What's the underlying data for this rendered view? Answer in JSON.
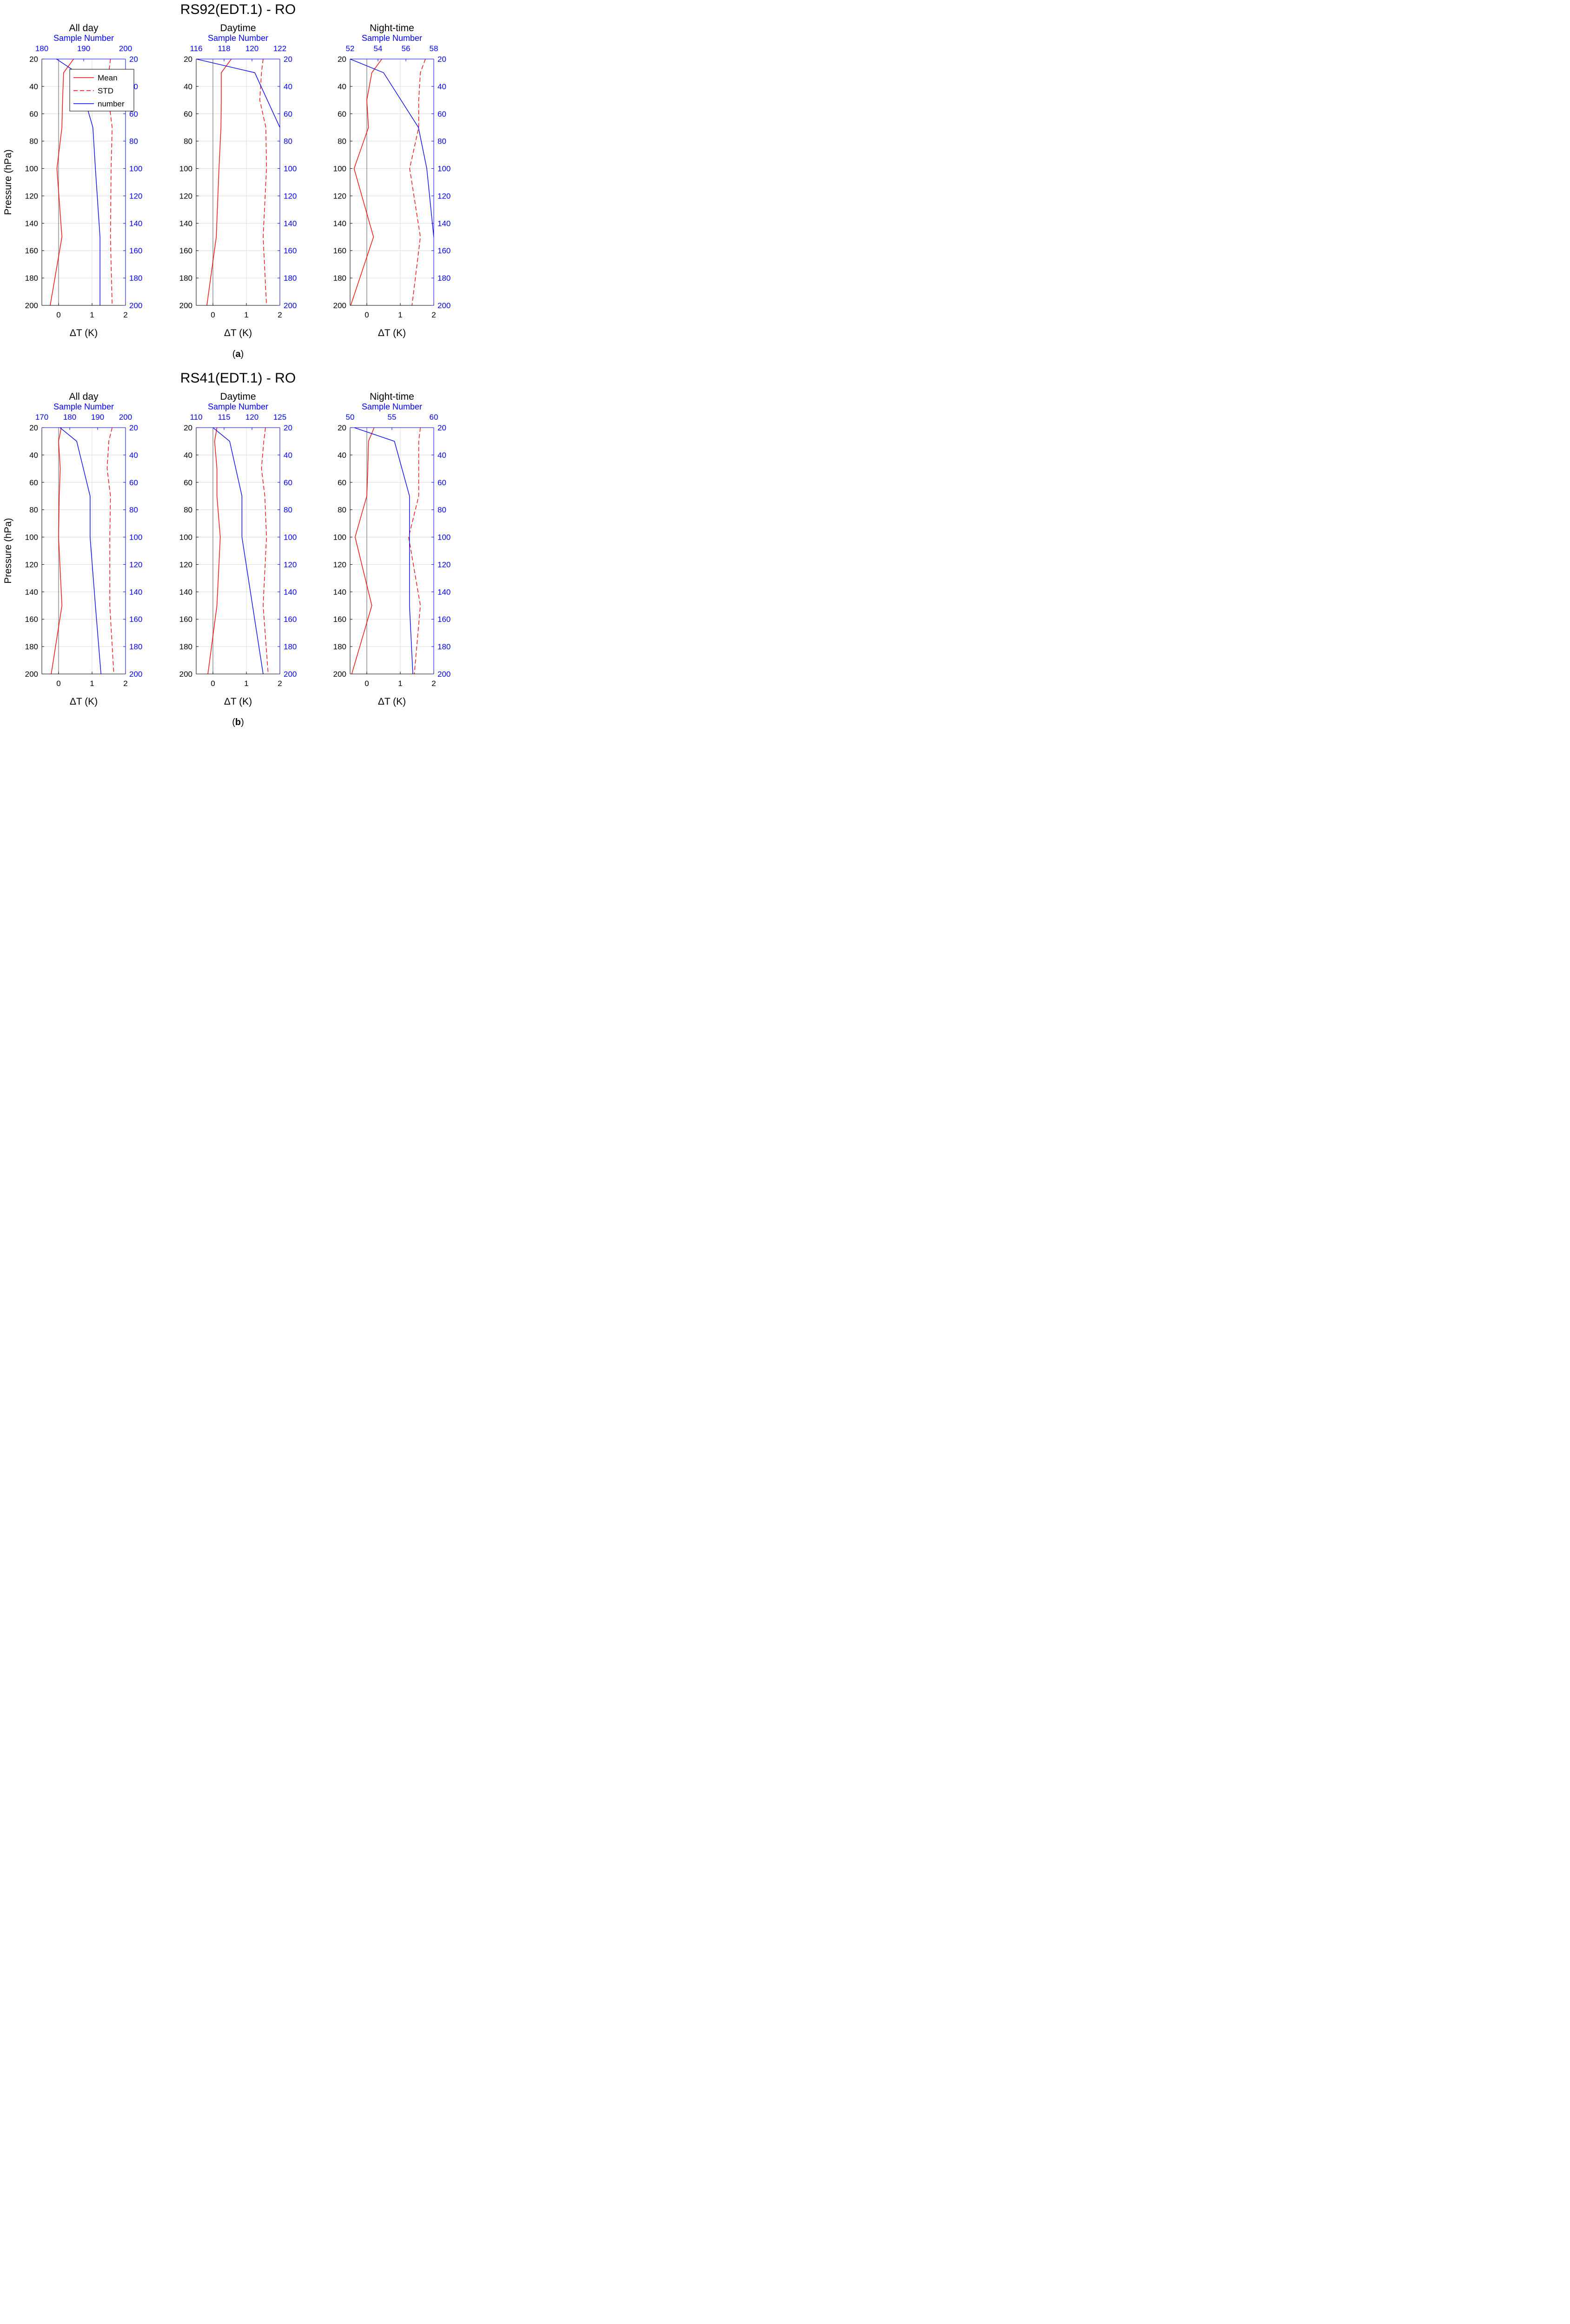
{
  "figure": {
    "panels": [
      {
        "title": "RS92(EDT.1) - RO",
        "caption_letter": "a",
        "subplots": [
          {
            "title": "All day",
            "top_axis_label": "Sample Number",
            "ylabel": "Pressure (hPa)",
            "xlabel": "ΔT (K)",
            "legend": [
              "Mean",
              "STD",
              "number"
            ]
          },
          {
            "title": "Daytime",
            "top_axis_label": "Sample Number",
            "xlabel": "ΔT (K)"
          },
          {
            "title": "Night-time",
            "top_axis_label": "Sample Number",
            "xlabel": "ΔT (K)"
          }
        ]
      },
      {
        "title": "RS41(EDT.1) - RO",
        "caption_letter": "b",
        "subplots": [
          {
            "title": "All day",
            "top_axis_label": "Sample Number",
            "ylabel": "Pressure (hPa)",
            "xlabel": "ΔT (K)"
          },
          {
            "title": "Daytime",
            "top_axis_label": "Sample Number",
            "xlabel": "ΔT (K)"
          },
          {
            "title": "Night-time",
            "top_axis_label": "Sample Number",
            "xlabel": "ΔT (K)"
          }
        ]
      }
    ]
  },
  "colors": {
    "mean": "#ff0000",
    "std": "#ff0000",
    "number": "#0000ff",
    "zero_line": "#808080",
    "axis": "#000000",
    "right_axis": "#0000ff"
  },
  "chart_data": [
    {
      "type": "line",
      "title": "All day",
      "panel": "RS92(EDT.1) - RO",
      "xlabel": "ΔT (K)",
      "ylabel": "Pressure (hPa)",
      "xlim": [
        -0.5,
        2
      ],
      "ylim": [
        20,
        200
      ],
      "y_reversed": true,
      "xticks": [
        0,
        1,
        2
      ],
      "yticks": [
        20,
        40,
        60,
        80,
        100,
        120,
        140,
        160,
        180,
        200
      ],
      "top_axis": {
        "label": "Sample Number",
        "lim": [
          180,
          200
        ],
        "ticks": [
          180,
          190,
          200
        ]
      },
      "right_axis_ticks": [
        20,
        40,
        60,
        80,
        100,
        120,
        140,
        160,
        180,
        200
      ],
      "grid": true,
      "legend_position": "top-right",
      "pressure": [
        20,
        30,
        50,
        70,
        100,
        150,
        200
      ],
      "series": [
        {
          "name": "Mean",
          "style": "solid",
          "axis": "bottom",
          "values": [
            0.45,
            0.15,
            0.12,
            0.1,
            -0.05,
            0.1,
            -0.25
          ]
        },
        {
          "name": "STD",
          "style": "dashed",
          "axis": "bottom",
          "values": [
            1.55,
            1.5,
            1.5,
            1.6,
            1.57,
            1.55,
            1.6
          ]
        },
        {
          "name": "number",
          "style": "solid",
          "axis": "top",
          "pressure": [
            20,
            30,
            70,
            100,
            150,
            200
          ],
          "values": [
            183.5,
            188.4,
            192.2,
            192.8,
            193.9,
            193.9
          ]
        }
      ]
    },
    {
      "type": "line",
      "title": "Daytime",
      "panel": "RS92(EDT.1) - RO",
      "xlabel": "ΔT (K)",
      "xlim": [
        -0.5,
        2
      ],
      "ylim": [
        20,
        200
      ],
      "y_reversed": true,
      "xticks": [
        0,
        1,
        2
      ],
      "yticks": [
        20,
        40,
        60,
        80,
        100,
        120,
        140,
        160,
        180,
        200
      ],
      "top_axis": {
        "label": "Sample Number",
        "lim": [
          116,
          122
        ],
        "ticks": [
          116,
          118,
          120,
          122
        ]
      },
      "right_axis_ticks": [
        20,
        40,
        60,
        80,
        100,
        120,
        140,
        160,
        180,
        200
      ],
      "grid": true,
      "pressure": [
        20,
        30,
        50,
        70,
        100,
        150,
        200
      ],
      "series": [
        {
          "name": "Mean",
          "style": "solid",
          "axis": "bottom",
          "values": [
            0.55,
            0.25,
            0.25,
            0.24,
            0.18,
            0.1,
            -0.18
          ]
        },
        {
          "name": "STD",
          "style": "dashed",
          "axis": "bottom",
          "values": [
            1.5,
            1.45,
            1.4,
            1.58,
            1.6,
            1.5,
            1.6
          ]
        },
        {
          "name": "number",
          "style": "solid",
          "axis": "top",
          "pressure": [
            20,
            30,
            70
          ],
          "values": [
            116,
            120.2,
            122
          ]
        }
      ]
    },
    {
      "type": "line",
      "title": "Night-time",
      "panel": "RS92(EDT.1) - RO",
      "xlabel": "ΔT (K)",
      "xlim": [
        -0.5,
        2
      ],
      "ylim": [
        20,
        200
      ],
      "y_reversed": true,
      "xticks": [
        0,
        1,
        2
      ],
      "yticks": [
        20,
        40,
        60,
        80,
        100,
        120,
        140,
        160,
        180,
        200
      ],
      "top_axis": {
        "label": "Sample Number",
        "lim": [
          52,
          58
        ],
        "ticks": [
          52,
          54,
          56,
          58
        ]
      },
      "right_axis_ticks": [
        20,
        40,
        60,
        80,
        100,
        120,
        140,
        160,
        180,
        200
      ],
      "grid": true,
      "pressure": [
        20,
        30,
        50,
        70,
        100,
        150,
        200
      ],
      "series": [
        {
          "name": "Mean",
          "style": "solid",
          "axis": "bottom",
          "values": [
            0.45,
            0.15,
            0.0,
            0.05,
            -0.38,
            0.2,
            -0.48
          ]
        },
        {
          "name": "STD",
          "style": "dashed",
          "axis": "bottom",
          "values": [
            1.75,
            1.6,
            1.55,
            1.55,
            1.28,
            1.6,
            1.35
          ]
        },
        {
          "name": "number",
          "style": "solid",
          "axis": "top",
          "pressure": [
            20,
            30,
            70,
            100,
            150
          ],
          "values": [
            52,
            54.4,
            56.9,
            57.5,
            58
          ]
        }
      ]
    },
    {
      "type": "line",
      "title": "All day",
      "panel": "RS41(EDT.1) - RO",
      "xlabel": "ΔT (K)",
      "ylabel": "Pressure (hPa)",
      "xlim": [
        -0.5,
        2
      ],
      "ylim": [
        20,
        200
      ],
      "y_reversed": true,
      "xticks": [
        0,
        1,
        2
      ],
      "yticks": [
        20,
        40,
        60,
        80,
        100,
        120,
        140,
        160,
        180,
        200
      ],
      "top_axis": {
        "label": "Sample Number",
        "lim": [
          170,
          200
        ],
        "ticks": [
          170,
          180,
          190,
          200
        ]
      },
      "right_axis_ticks": [
        20,
        40,
        60,
        80,
        100,
        120,
        140,
        160,
        180,
        200
      ],
      "grid": true,
      "pressure": [
        20,
        30,
        50,
        70,
        100,
        150,
        200
      ],
      "series": [
        {
          "name": "Mean",
          "style": "solid",
          "axis": "bottom",
          "values": [
            0.08,
            0.0,
            0.05,
            0.02,
            0.0,
            0.1,
            -0.22
          ]
        },
        {
          "name": "STD",
          "style": "dashed",
          "axis": "bottom",
          "values": [
            1.6,
            1.5,
            1.45,
            1.55,
            1.53,
            1.53,
            1.65
          ]
        },
        {
          "name": "number",
          "style": "solid",
          "axis": "top",
          "pressure": [
            20,
            30,
            70,
            100,
            150,
            200
          ],
          "values": [
            176.5,
            182.5,
            187.3,
            187.3,
            189.2,
            191.2
          ]
        }
      ]
    },
    {
      "type": "line",
      "title": "Daytime",
      "panel": "RS41(EDT.1) - RO",
      "xlabel": "ΔT (K)",
      "xlim": [
        -0.5,
        2
      ],
      "ylim": [
        20,
        200
      ],
      "y_reversed": true,
      "xticks": [
        0,
        1,
        2
      ],
      "yticks": [
        20,
        40,
        60,
        80,
        100,
        120,
        140,
        160,
        180,
        200
      ],
      "top_axis": {
        "label": "Sample Number",
        "lim": [
          110,
          125
        ],
        "ticks": [
          110,
          115,
          120,
          125
        ]
      },
      "right_axis_ticks": [
        20,
        40,
        60,
        80,
        100,
        120,
        140,
        160,
        180,
        200
      ],
      "grid": true,
      "pressure": [
        20,
        30,
        50,
        70,
        100,
        150,
        200
      ],
      "series": [
        {
          "name": "Mean",
          "style": "solid",
          "axis": "bottom",
          "values": [
            0.12,
            0.05,
            0.12,
            0.12,
            0.22,
            0.12,
            -0.15
          ]
        },
        {
          "name": "STD",
          "style": "dashed",
          "axis": "bottom",
          "values": [
            1.57,
            1.52,
            1.45,
            1.55,
            1.6,
            1.5,
            1.65
          ]
        },
        {
          "name": "number",
          "style": "solid",
          "axis": "top",
          "pressure": [
            20,
            30,
            70,
            100,
            200
          ],
          "values": [
            113,
            116,
            118.2,
            118.2,
            122
          ]
        }
      ]
    },
    {
      "type": "line",
      "title": "Night-time",
      "panel": "RS41(EDT.1) - RO",
      "xlabel": "ΔT (K)",
      "xlim": [
        -0.5,
        2
      ],
      "ylim": [
        20,
        200
      ],
      "y_reversed": true,
      "xticks": [
        0,
        1,
        2
      ],
      "yticks": [
        20,
        40,
        60,
        80,
        100,
        120,
        140,
        160,
        180,
        200
      ],
      "top_axis": {
        "label": "Sample Number",
        "lim": [
          50,
          60
        ],
        "ticks": [
          50,
          55,
          60
        ]
      },
      "right_axis_ticks": [
        20,
        40,
        60,
        80,
        100,
        120,
        140,
        160,
        180,
        200
      ],
      "grid": true,
      "pressure": [
        20,
        30,
        50,
        70,
        100,
        150,
        200
      ],
      "series": [
        {
          "name": "Mean",
          "style": "solid",
          "axis": "bottom",
          "values": [
            0.22,
            0.05,
            0.03,
            0.0,
            -0.35,
            0.15,
            -0.45
          ]
        },
        {
          "name": "STD",
          "style": "dashed",
          "axis": "bottom",
          "values": [
            1.6,
            1.55,
            1.55,
            1.55,
            1.25,
            1.6,
            1.42
          ]
        },
        {
          "name": "number",
          "style": "solid",
          "axis": "top",
          "pressure": [
            20,
            30,
            70,
            100,
            150,
            200
          ],
          "values": [
            50.5,
            55.3,
            57.1,
            57.1,
            57.1,
            57.5
          ]
        }
      ]
    }
  ]
}
